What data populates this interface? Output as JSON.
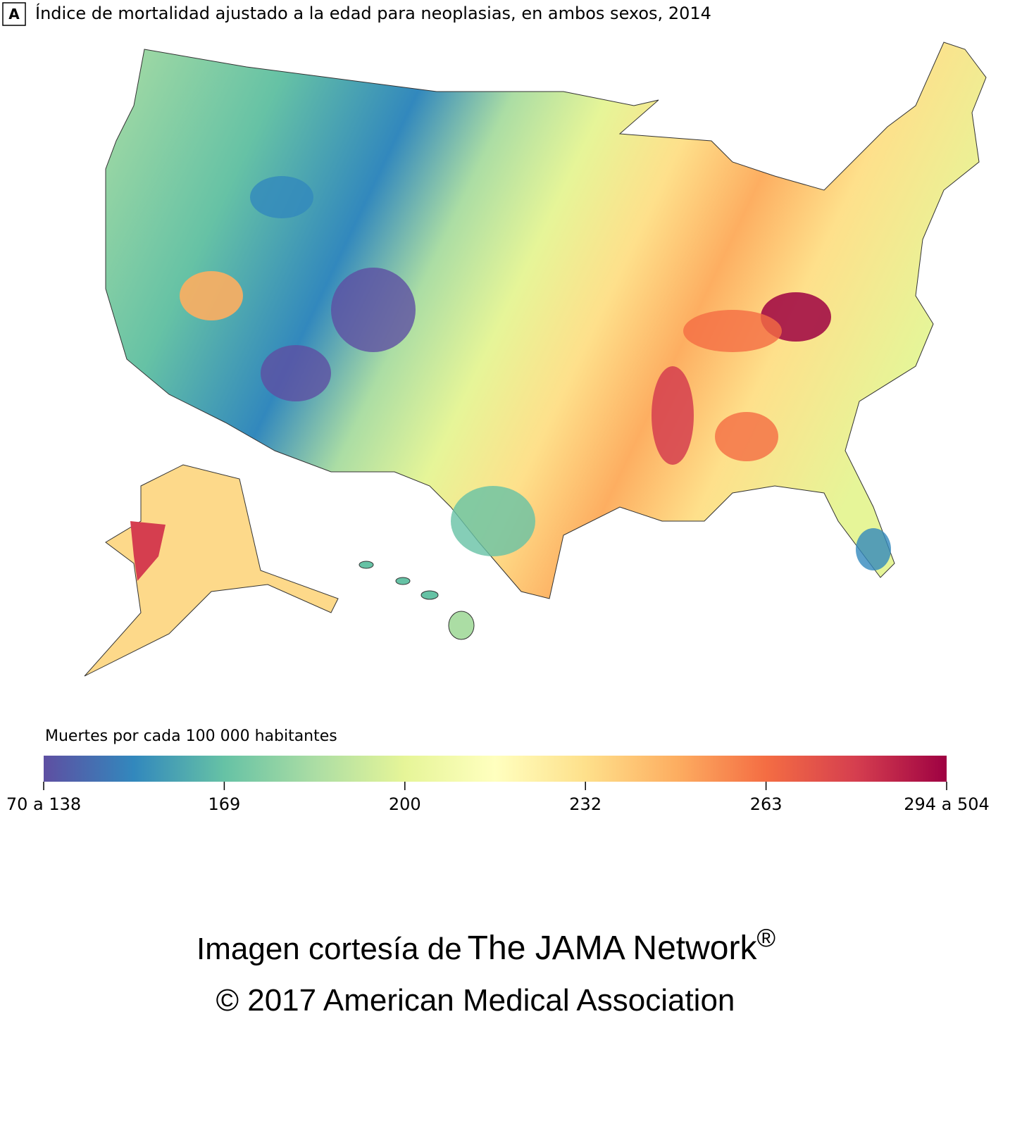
{
  "panel_label": "A",
  "title": "Índice de mortalidad ajustado a la edad para neoplasias, en ambos sexos, 2014",
  "legend": {
    "title": "Muertes por cada 100 000 habitantes",
    "ticks": [
      "70 a 138",
      "169",
      "200",
      "232",
      "263",
      "294 a 504"
    ],
    "colors": [
      "#5e4fa2",
      "#3288bd",
      "#66c2a5",
      "#abdda4",
      "#e6f598",
      "#ffffbf",
      "#fee08b",
      "#fdae61",
      "#f46d43",
      "#d53e4f",
      "#9e0142"
    ]
  },
  "credit": {
    "prefix": "Imagen cortesía de",
    "brand": "The JAMA Network",
    "mark": "®",
    "copyright": "© 2017 American Medical Association"
  }
}
